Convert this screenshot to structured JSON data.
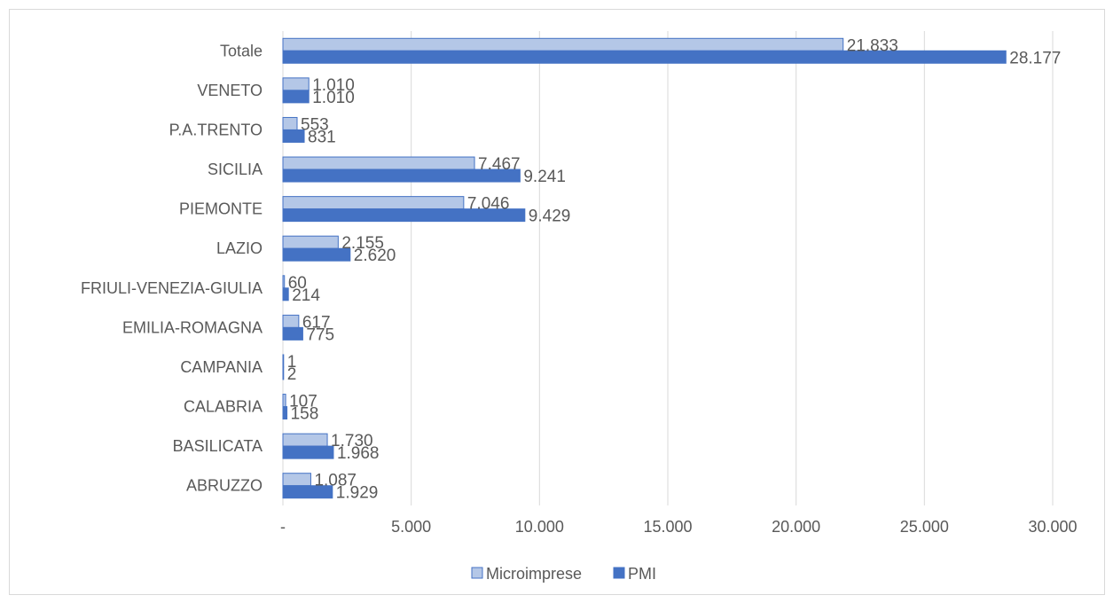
{
  "chart_data": {
    "type": "bar",
    "orientation": "horizontal",
    "categories": [
      "Totale",
      "VENETO",
      "P.A.TRENTO",
      "SICILIA",
      "PIEMONTE",
      "LAZIO",
      "FRIULI-VENEZIA-GIULIA",
      "EMILIA-ROMAGNA",
      "CAMPANIA",
      "CALABRIA",
      "BASILICATA",
      "ABRUZZO"
    ],
    "series": [
      {
        "name": "Microimprese",
        "values": [
          21833,
          1010,
          553,
          7467,
          7046,
          2155,
          60,
          617,
          1,
          107,
          1730,
          1087
        ],
        "labels": [
          "21.833",
          "1.010",
          "553",
          "7.467",
          "7.046",
          "2.155",
          "60",
          "617",
          "1",
          "107",
          "1.730",
          "1.087"
        ],
        "color": "#b4c7e7",
        "border": "#4472c4"
      },
      {
        "name": "PMI",
        "values": [
          28177,
          1010,
          831,
          9241,
          9429,
          2620,
          214,
          775,
          2,
          158,
          1968,
          1929
        ],
        "labels": [
          "28.177",
          "1.010",
          "831",
          "9.241",
          "9.429",
          "2.620",
          "214",
          "775",
          "2",
          "158",
          "1.968",
          "1.929"
        ],
        "color": "#4472c4",
        "border": "#4472c4"
      }
    ],
    "x_ticks": [
      0,
      5000,
      10000,
      15000,
      20000,
      25000,
      30000
    ],
    "x_tick_labels": [
      "-",
      "5.000",
      "10.000",
      "15.000",
      "20.000",
      "25.000",
      "30.000"
    ],
    "xlim": [
      0,
      30000
    ],
    "grid": "vertical",
    "legend": "bottom"
  }
}
